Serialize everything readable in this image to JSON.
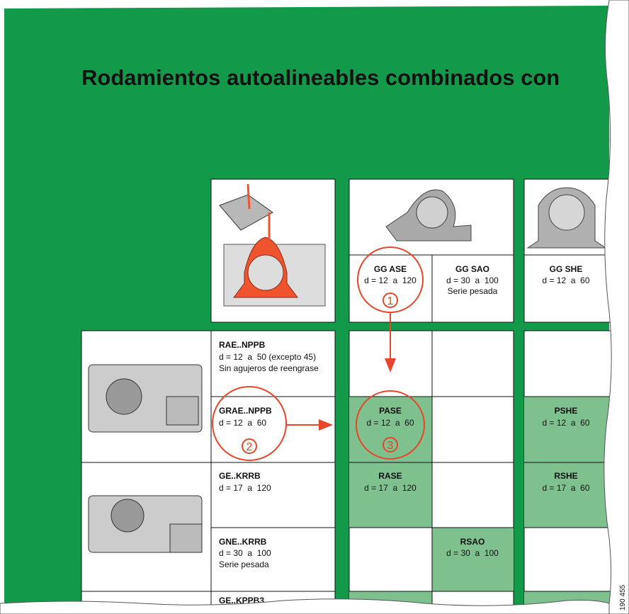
{
  "title": "Rodamientos autoalineables combinados con",
  "housings": [
    {
      "name": "GG ASE",
      "range": "d = 12  a  120"
    },
    {
      "name": "GG SAO",
      "range": "d = 30  a  100",
      "note": "Serie pesada"
    },
    {
      "name": "GG SHE",
      "range": "d = 12  a  60"
    }
  ],
  "bearings": [
    {
      "name": "RAE..NPPB",
      "range": "d = 12  a  50 (excepto 45)",
      "note": "Sin agujeros de reengrase"
    },
    {
      "name": "GRAE..NPPB",
      "range": "d = 12  a  60"
    },
    {
      "name": "GE..KRRB",
      "range": "d = 17  a  120"
    },
    {
      "name": "GNE..KRRB",
      "range": "d = 30  a  100",
      "note": "Serie pesada"
    },
    {
      "name": "GE..KPPB3"
    }
  ],
  "combinations": [
    {
      "name": "PASE",
      "range": "d = 12  a  60"
    },
    {
      "name": "PSHE",
      "range": "d = 12  a  60"
    },
    {
      "name": "RASE",
      "range": "d = 17  a  120"
    },
    {
      "name": "RSHE",
      "range": "d = 17  a  60"
    },
    {
      "name": "RSAO",
      "range": "d = 30  a  100"
    }
  ],
  "callouts": [
    "1",
    "2",
    "3"
  ],
  "figure_id": "190 455"
}
